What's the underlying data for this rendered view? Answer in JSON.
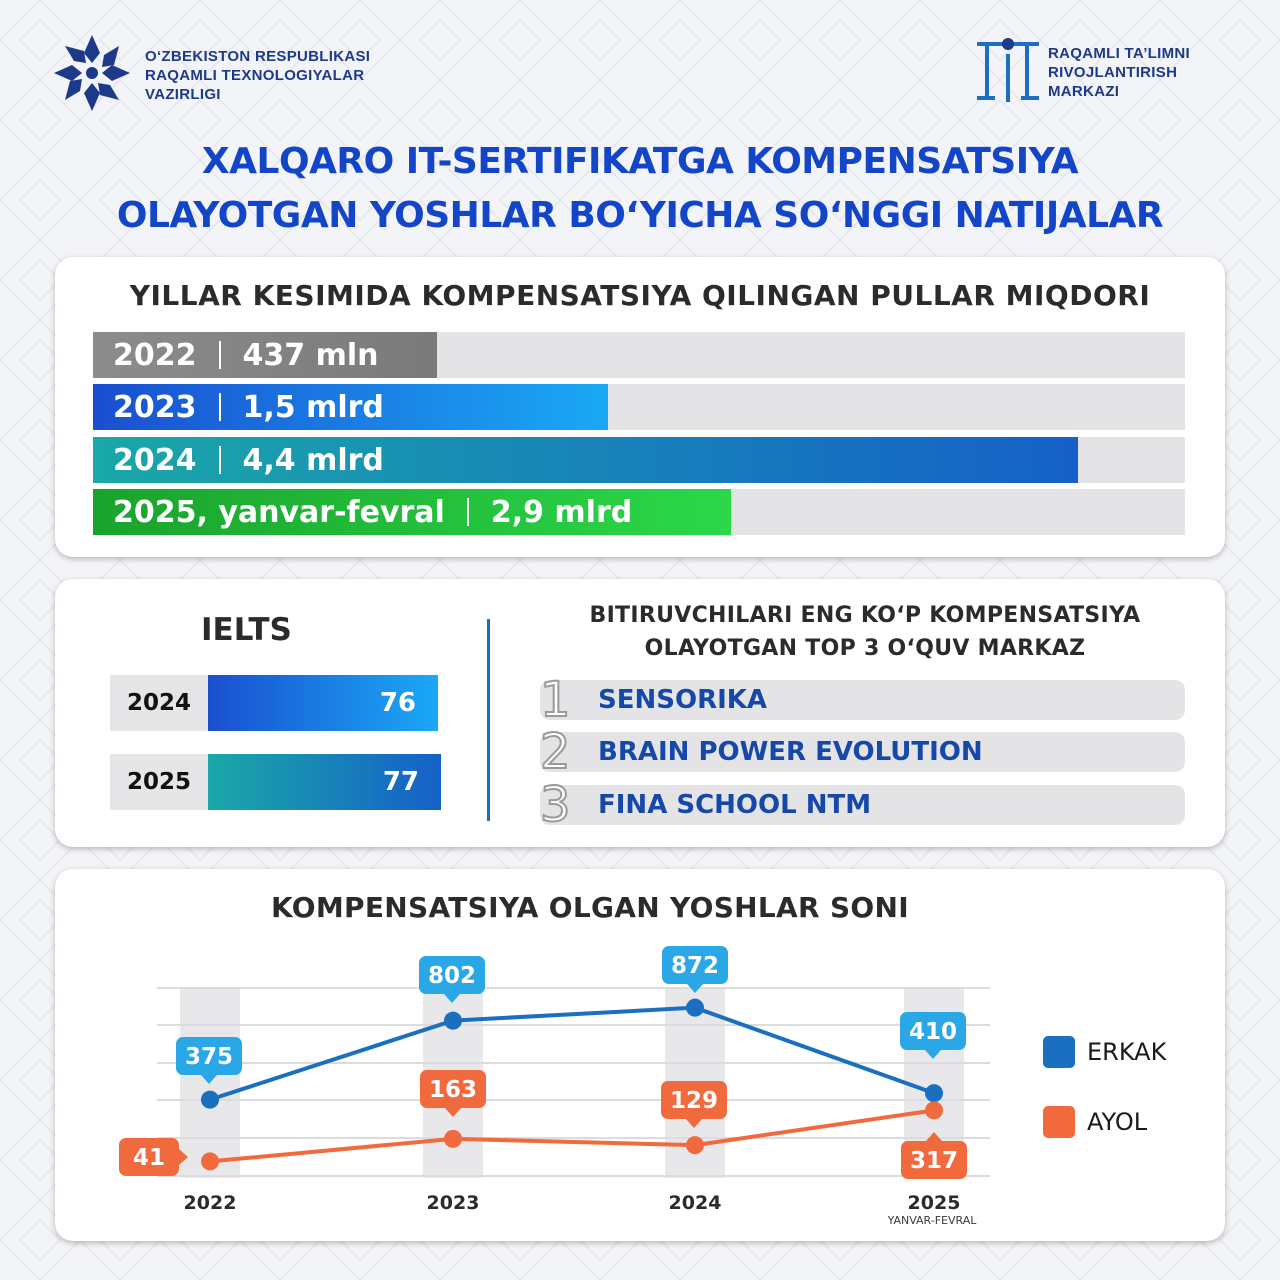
{
  "header": {
    "left_org_lines": [
      "O‘ZBEKISTON RESPUBLIKASI",
      "RAQAMLI TEXNOLOGIYALAR",
      "VAZIRLIGI"
    ],
    "right_org_lines": [
      "RAQAMLI TA’LIMNI",
      "RIVOJLANTIRISH",
      "MARKAZI"
    ]
  },
  "title_lines": [
    "XALQARO IT-SERTIFIKATGA KOMPENSATSIYA",
    "OLAYOTGAN YOSHLAR BO‘YICHA SO‘NGGI NATIJALAR"
  ],
  "colors": {
    "brand_blue": "#1345c8",
    "erkak": "#1a6fc0",
    "ayol": "#f06a3e",
    "bubble_blue": "#2aa7e6",
    "bubble_orange": "#f06a3e"
  },
  "chart_data": [
    {
      "type": "bar",
      "orientation": "horizontal",
      "title": "YILLAR KESIMIDA KOMPENSATSIYA QILINGAN PULLAR MIQDORI",
      "categories": [
        "2022",
        "2023",
        "2024",
        "2025, yanvar-fevral"
      ],
      "value_labels": [
        "437 mln",
        "1,5 mlrd",
        "4,4 mlrd",
        "2,9 mlrd"
      ],
      "fractions": [
        0.315,
        0.472,
        0.902,
        0.584
      ],
      "colors": [
        "#8c8c8c",
        "#1e6fe0",
        "#1a9aa6",
        "#16b83a"
      ]
    },
    {
      "type": "bar",
      "orientation": "horizontal",
      "title": "IELTS",
      "categories": [
        "2024",
        "2025"
      ],
      "values": [
        76,
        77
      ]
    },
    {
      "type": "table",
      "title_lines": [
        "BITIRUVCHILARI ENG KO‘P KOMPENSATSIYA",
        "OLAYOTGAN TOP 3 O‘QUV MARKAZ"
      ],
      "rows": [
        {
          "rank": "1",
          "name": "SENSORIKA"
        },
        {
          "rank": "2",
          "name": "BRAIN POWER EVOLUTION"
        },
        {
          "rank": "3",
          "name": "FINA SCHOOL NTM"
        }
      ]
    },
    {
      "type": "line",
      "title": "KOMPENSATSIYA OLGAN YOSHLAR SONI",
      "categories": [
        "2022",
        "2023",
        "2024",
        "2025"
      ],
      "category_sublabels": [
        "",
        "",
        "",
        "YANVAR-FEVRAL"
      ],
      "series": [
        {
          "name": "ERKAK",
          "values": [
            375,
            802,
            872,
            410
          ],
          "color": "#1a6fc0"
        },
        {
          "name": "AYOL",
          "values": [
            41,
            163,
            129,
            317
          ],
          "color": "#f06a3e"
        }
      ],
      "grid": true,
      "legend": "right"
    }
  ]
}
